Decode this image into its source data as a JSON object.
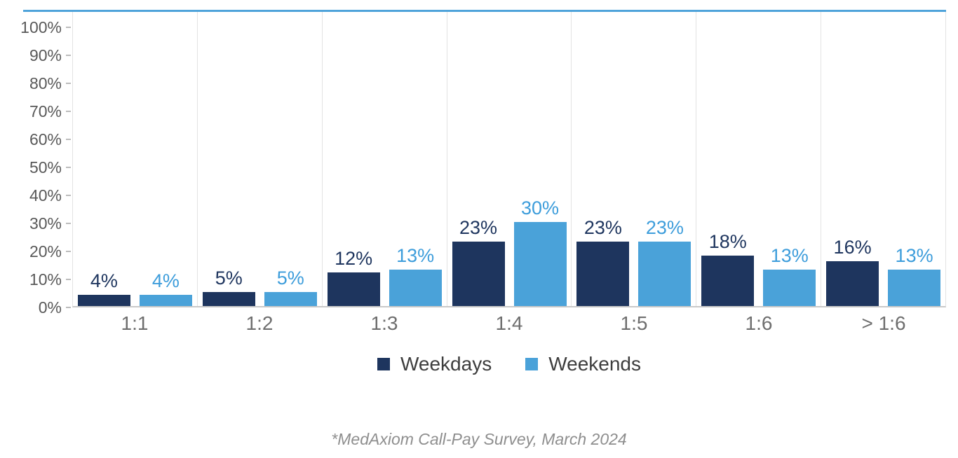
{
  "chart_data": {
    "type": "bar",
    "categories": [
      "1:1",
      "1:2",
      "1:3",
      "1:4",
      "1:5",
      "1:6",
      "> 1:6"
    ],
    "series": [
      {
        "name": "Weekdays",
        "color": "#1e355e",
        "label_color": "#1e355e",
        "values": [
          4,
          5,
          12,
          23,
          23,
          18,
          16
        ],
        "labels": [
          "4%",
          "5%",
          "12%",
          "23%",
          "23%",
          "18%",
          "16%"
        ]
      },
      {
        "name": "Weekends",
        "color": "#4aa2d9",
        "label_color": "#3d9ddb",
        "values": [
          4,
          5,
          13,
          30,
          23,
          13,
          13
        ],
        "labels": [
          "4%",
          "5%",
          "13%",
          "30%",
          "23%",
          "13%",
          "13%"
        ]
      }
    ],
    "y_ticks": [
      "100%",
      "90%",
      "80%",
      "70%",
      "60%",
      "50%",
      "40%",
      "30%",
      "20%",
      "10%",
      "0%"
    ],
    "ylim": [
      0,
      100
    ],
    "xlabel": "",
    "ylabel": "",
    "grid": "vertical-category-separators",
    "legend_position": "bottom-center",
    "footnote": "*MedAxiom Call-Pay Survey, March 2024",
    "colors": {
      "top_rule": "#4fa3da",
      "weekdays_bar": "#1e355e",
      "weekends_bar": "#4aa2d9",
      "y_axis_text": "#595959",
      "x_axis_text": "#6e6e6e",
      "gridline": "#e3e3e3",
      "baseline": "#c9c9c9",
      "legend_text": "#3d3d3d",
      "footnote_text": "#8e8e8e"
    }
  }
}
